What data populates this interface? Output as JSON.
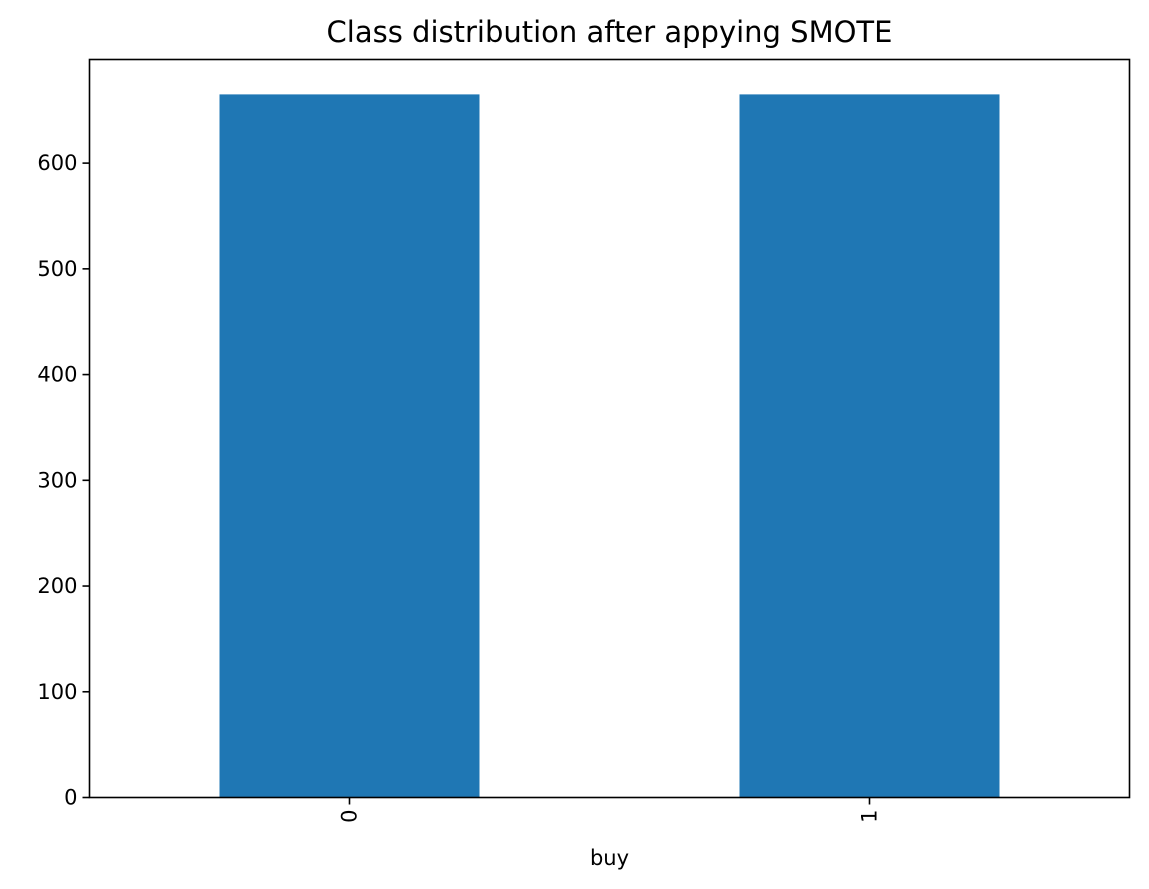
{
  "chart_data": {
    "type": "bar",
    "title": "Class distribution after appying SMOTE",
    "xlabel": "buy",
    "ylabel": "",
    "categories": [
      "0",
      "1"
    ],
    "values": [
      665,
      665
    ],
    "ylim": [
      0,
      698
    ],
    "yticks": [
      0,
      100,
      200,
      300,
      400,
      500,
      600
    ],
    "ytick_labels": [
      "0",
      "100",
      "200",
      "300",
      "400",
      "500",
      "600"
    ],
    "xtick_rotation": "vertical",
    "bar_color": "#1f77b4",
    "grid": false,
    "legend": "none"
  }
}
